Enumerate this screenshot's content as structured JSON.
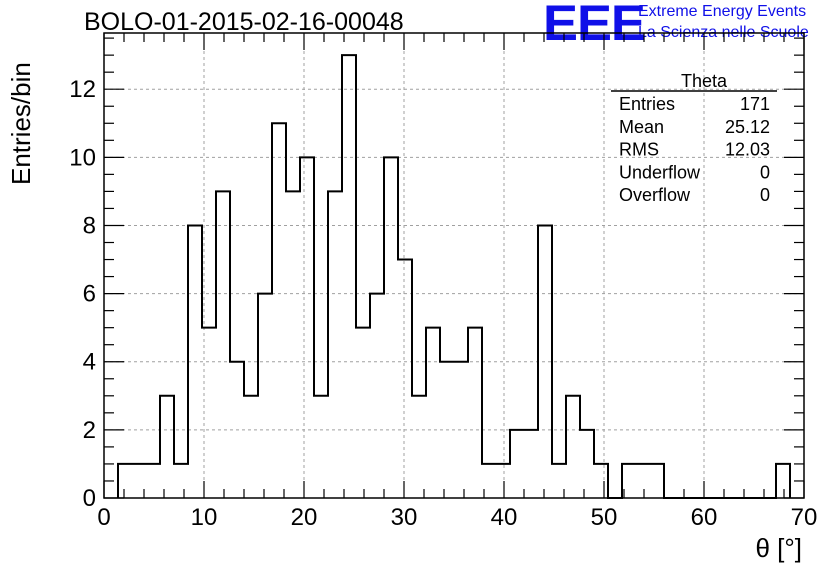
{
  "header": {
    "title": "BOLO-01-2015-02-16-00048",
    "logo_text": "EEE",
    "org_line1": "Extreme Energy Events",
    "org_line2": "La Scienza nelle Scuole"
  },
  "stats": {
    "name": "Theta",
    "rows": [
      {
        "label": "Entries",
        "value": "171"
      },
      {
        "label": "Mean",
        "value": "25.12"
      },
      {
        "label": "RMS",
        "value": "12.03"
      },
      {
        "label": "Underflow",
        "value": "0"
      },
      {
        "label": "Overflow",
        "value": "0"
      }
    ]
  },
  "chart_data": {
    "type": "bar",
    "style": "step-histogram",
    "xlabel": "θ [°]",
    "ylabel": "Entries/bin",
    "xlim": [
      0,
      70
    ],
    "ylim": [
      0,
      13.65
    ],
    "grid": true,
    "bin_width": 1.4,
    "bin_edges": [
      1.4,
      2.8,
      4.2,
      5.6,
      7.0,
      8.4,
      9.8,
      11.2,
      12.6,
      14.0,
      15.4,
      16.8,
      18.2,
      19.6,
      21.0,
      22.4,
      23.8,
      25.2,
      26.6,
      28.0,
      29.4,
      30.8,
      32.2,
      33.6,
      35.0,
      36.4,
      37.8,
      39.2,
      40.6,
      42.0,
      43.4,
      44.8,
      46.2,
      47.6,
      49.0,
      50.4,
      51.8,
      53.2,
      54.6,
      56.0,
      57.4,
      58.8,
      60.2,
      61.6,
      63.0,
      64.4,
      65.8,
      67.2,
      68.6
    ],
    "values": [
      1,
      1,
      1,
      3,
      1,
      8,
      5,
      9,
      4,
      3,
      6,
      11,
      9,
      10,
      3,
      9,
      13,
      5,
      6,
      10,
      7,
      3,
      5,
      4,
      4,
      5,
      1,
      1,
      2,
      2,
      8,
      1,
      3,
      2,
      1,
      0,
      1,
      1,
      1,
      0,
      0,
      0,
      0,
      0,
      0,
      0,
      0,
      1
    ],
    "xticks": [
      "0",
      "10",
      "20",
      "30",
      "40",
      "50",
      "60",
      "70"
    ],
    "yticks": [
      "0",
      "2",
      "4",
      "6",
      "8",
      "10",
      "12"
    ]
  }
}
